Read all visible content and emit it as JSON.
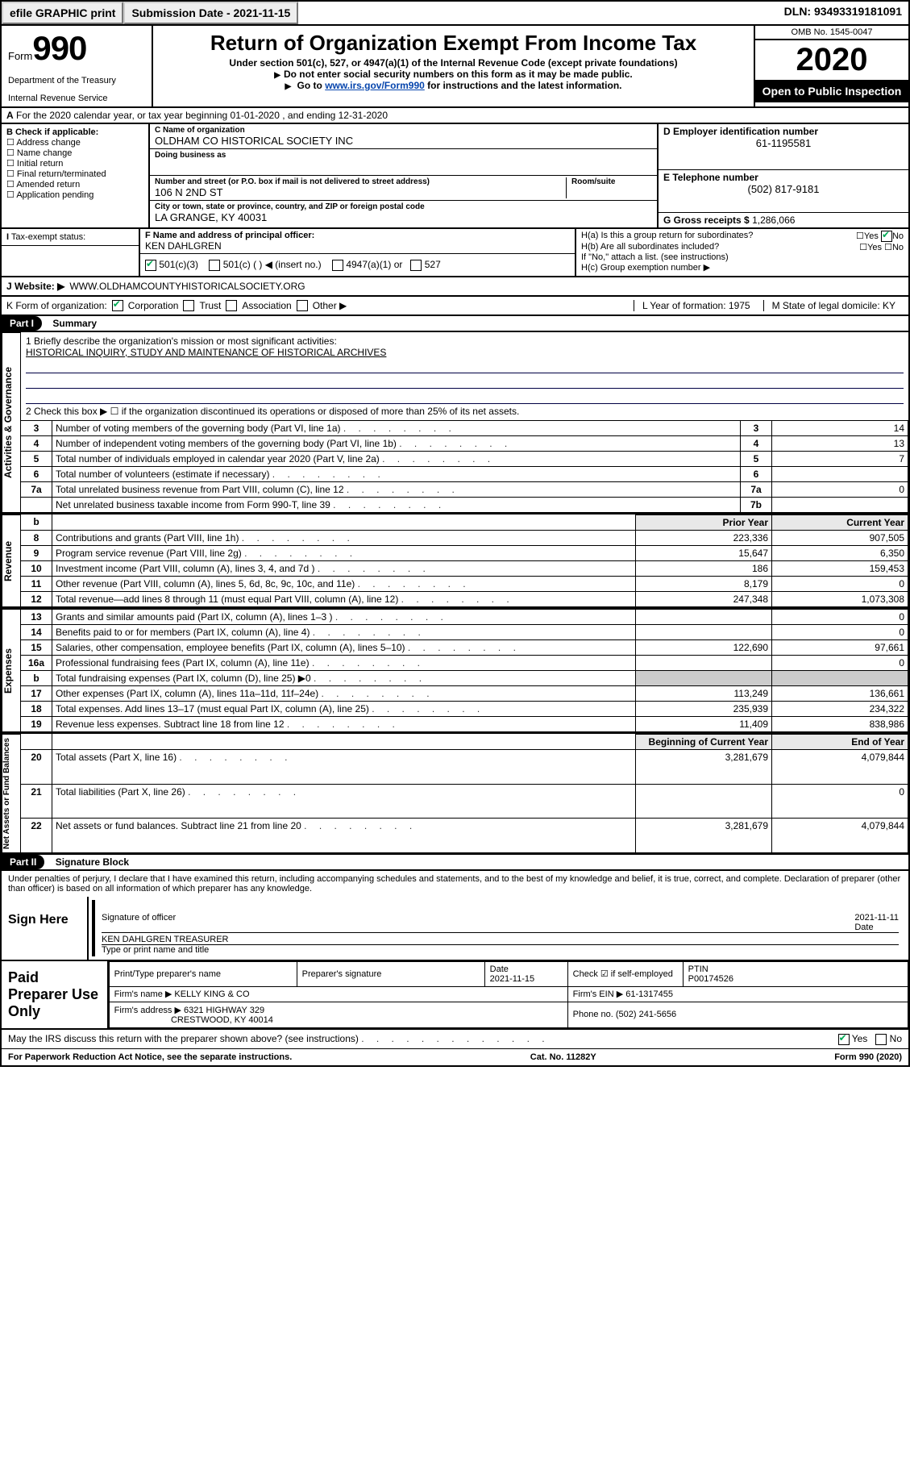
{
  "topbar": {
    "efile": "efile GRAPHIC print",
    "subdate_label": "Submission Date - ",
    "subdate": "2021-11-15",
    "dln_label": "DLN: ",
    "dln": "93493319181091"
  },
  "header": {
    "form_word": "Form",
    "form_num": "990",
    "dept1": "Department of the Treasury",
    "dept2": "Internal Revenue Service",
    "title": "Return of Organization Exempt From Income Tax",
    "sub": "Under section 501(c), 527, or 4947(a)(1) of the Internal Revenue Code (except private foundations)",
    "inst1": "Do not enter social security numbers on this form as it may be made public.",
    "inst2_pre": "Go to ",
    "inst2_link": "www.irs.gov/Form990",
    "inst2_post": " for instructions and the latest information.",
    "omb": "OMB No. 1545-0047",
    "year": "2020",
    "open": "Open to Public Inspection"
  },
  "lineA": "For the 2020 calendar year, or tax year beginning 01-01-2020    , and ending 12-31-2020",
  "boxB": {
    "label": "B Check if applicable:",
    "items": [
      "Address change",
      "Name change",
      "Initial return",
      "Final return/terminated",
      "Amended return",
      "Application pending"
    ]
  },
  "boxC": {
    "name_lbl": "C Name of organization",
    "name": "OLDHAM CO HISTORICAL SOCIETY INC",
    "dba_lbl": "Doing business as",
    "addr_lbl": "Number and street (or P.O. box if mail is not delivered to street address)",
    "room_lbl": "Room/suite",
    "addr": "106 N 2ND ST",
    "city_lbl": "City or town, state or province, country, and ZIP or foreign postal code",
    "city": "LA GRANGE, KY  40031"
  },
  "boxD": {
    "lbl": "D Employer identification number",
    "val": "61-1195581"
  },
  "boxE": {
    "lbl": "E Telephone number",
    "val": "(502) 817-9181"
  },
  "boxG": {
    "lbl": "G Gross receipts $",
    "val": "1,286,066"
  },
  "boxF": {
    "lbl": "F  Name and address of principal officer:",
    "val": "KEN DAHLGREN"
  },
  "boxH": {
    "a": "H(a)  Is this a group return for subordinates?",
    "b": "H(b)  Are all subordinates included?",
    "note": "If \"No,\" attach a list. (see instructions)",
    "c": "H(c)  Group exemption number ▶",
    "yes": "Yes",
    "no": "No"
  },
  "taxstatus": {
    "lbl": "Tax-exempt status:",
    "opts": [
      "501(c)(3)",
      "501(c) (  ) ◀ (insert no.)",
      "4947(a)(1) or",
      "527"
    ]
  },
  "lineJ": {
    "lbl": "J    Website: ▶",
    "val": "WWW.OLDHAMCOUNTYHISTORICALSOCIETY.ORG"
  },
  "lineK": {
    "lbl": "K Form of organization:",
    "opts": [
      "Corporation",
      "Trust",
      "Association",
      "Other ▶"
    ],
    "L": "L Year of formation: 1975",
    "M": "M State of legal domicile: KY"
  },
  "part1": {
    "hdr": "Part I",
    "title": "Summary",
    "l1": "1  Briefly describe the organization's mission or most significant activities:",
    "mission": "HISTORICAL INQUIRY, STUDY AND MAINTENANCE OF HISTORICAL ARCHIVES",
    "l2": "2    Check this box ▶ ☐  if the organization discontinued its operations or disposed of more than 25% of its net assets.",
    "rows_gov": [
      {
        "n": "3",
        "t": "Number of voting members of the governing body (Part VI, line 1a)",
        "b": "3",
        "v": "14"
      },
      {
        "n": "4",
        "t": "Number of independent voting members of the governing body (Part VI, line 1b)",
        "b": "4",
        "v": "13"
      },
      {
        "n": "5",
        "t": "Total number of individuals employed in calendar year 2020 (Part V, line 2a)",
        "b": "5",
        "v": "7"
      },
      {
        "n": "6",
        "t": "Total number of volunteers (estimate if necessary)",
        "b": "6",
        "v": ""
      },
      {
        "n": "7a",
        "t": "Total unrelated business revenue from Part VIII, column (C), line 12",
        "b": "7a",
        "v": "0"
      },
      {
        "n": "",
        "t": "Net unrelated business taxable income from Form 990-T, line 39",
        "b": "7b",
        "v": ""
      }
    ],
    "col_prior": "Prior Year",
    "col_curr": "Current Year",
    "rows_rev": [
      {
        "n": "8",
        "t": "Contributions and grants (Part VIII, line 1h)",
        "p": "223,336",
        "c": "907,505"
      },
      {
        "n": "9",
        "t": "Program service revenue (Part VIII, line 2g)",
        "p": "15,647",
        "c": "6,350"
      },
      {
        "n": "10",
        "t": "Investment income (Part VIII, column (A), lines 3, 4, and 7d )",
        "p": "186",
        "c": "159,453"
      },
      {
        "n": "11",
        "t": "Other revenue (Part VIII, column (A), lines 5, 6d, 8c, 9c, 10c, and 11e)",
        "p": "8,179",
        "c": "0"
      },
      {
        "n": "12",
        "t": "Total revenue—add lines 8 through 11 (must equal Part VIII, column (A), line 12)",
        "p": "247,348",
        "c": "1,073,308"
      }
    ],
    "rows_exp": [
      {
        "n": "13",
        "t": "Grants and similar amounts paid (Part IX, column (A), lines 1–3 )",
        "p": "",
        "c": "0"
      },
      {
        "n": "14",
        "t": "Benefits paid to or for members (Part IX, column (A), line 4)",
        "p": "",
        "c": "0"
      },
      {
        "n": "15",
        "t": "Salaries, other compensation, employee benefits (Part IX, column (A), lines 5–10)",
        "p": "122,690",
        "c": "97,661"
      },
      {
        "n": "16a",
        "t": "Professional fundraising fees (Part IX, column (A), line 11e)",
        "p": "",
        "c": "0"
      },
      {
        "n": "b",
        "t": "Total fundraising expenses (Part IX, column (D), line 25) ▶0",
        "p": "—",
        "c": "—"
      },
      {
        "n": "17",
        "t": "Other expenses (Part IX, column (A), lines 11a–11d, 11f–24e)",
        "p": "113,249",
        "c": "136,661"
      },
      {
        "n": "18",
        "t": "Total expenses. Add lines 13–17 (must equal Part IX, column (A), line 25)",
        "p": "235,939",
        "c": "234,322"
      },
      {
        "n": "19",
        "t": "Revenue less expenses. Subtract line 18 from line 12",
        "p": "11,409",
        "c": "838,986"
      }
    ],
    "col_beg": "Beginning of Current Year",
    "col_end": "End of Year",
    "rows_net": [
      {
        "n": "20",
        "t": "Total assets (Part X, line 16)",
        "p": "3,281,679",
        "c": "4,079,844"
      },
      {
        "n": "21",
        "t": "Total liabilities (Part X, line 26)",
        "p": "",
        "c": "0"
      },
      {
        "n": "22",
        "t": "Net assets or fund balances. Subtract line 21 from line 20",
        "p": "3,281,679",
        "c": "4,079,844"
      }
    ],
    "side_gov": "Activities & Governance",
    "side_rev": "Revenue",
    "side_exp": "Expenses",
    "side_net": "Net Assets or Fund Balances"
  },
  "part2": {
    "hdr": "Part II",
    "title": "Signature Block",
    "decl": "Under penalties of perjury, I declare that I have examined this return, including accompanying schedules and statements, and to the best of my knowledge and belief, it is true, correct, and complete. Declaration of preparer (other than officer) is based on all information of which preparer has any knowledge.",
    "sign_here": "Sign Here",
    "sig_of": "Signature of officer",
    "date_lbl": "Date",
    "date": "2021-11-11",
    "name": "KEN DAHLGREN  TREASURER",
    "name_lbl": "Type or print name and title",
    "paid": "Paid Preparer Use Only",
    "h1": "Print/Type preparer's name",
    "h2": "Preparer's signature",
    "h3": "Date",
    "h4": "Check ☑ if self-employed",
    "h5": "PTIN",
    "pdate": "2021-11-15",
    "ptin": "P00174526",
    "firm_lbl": "Firm's name    ▶",
    "firm": "KELLY KING & CO",
    "ein_lbl": "Firm's EIN ▶",
    "ein": "61-1317455",
    "faddr_lbl": "Firm's address ▶",
    "faddr1": "6321 HIGHWAY 329",
    "faddr2": "CRESTWOOD, KY  40014",
    "phone_lbl": "Phone no.",
    "phone": "(502) 241-5656",
    "discuss": "May the IRS discuss this return with the preparer shown above? (see instructions)"
  },
  "footer": {
    "l": "For Paperwork Reduction Act Notice, see the separate instructions.",
    "c": "Cat. No. 11282Y",
    "r": "Form 990 (2020)"
  }
}
